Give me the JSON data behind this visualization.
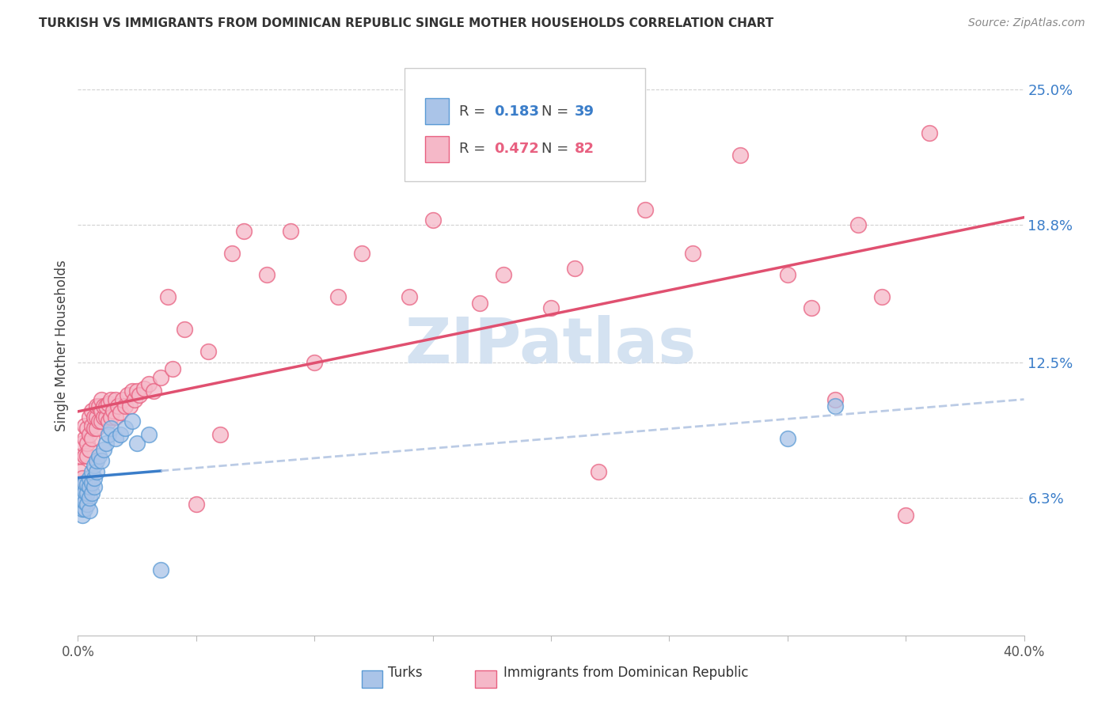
{
  "title": "TURKISH VS IMMIGRANTS FROM DOMINICAN REPUBLIC SINGLE MOTHER HOUSEHOLDS CORRELATION CHART",
  "source": "Source: ZipAtlas.com",
  "ylabel": "Single Mother Households",
  "ytick_labels": [
    "6.3%",
    "12.5%",
    "18.8%",
    "25.0%"
  ],
  "ytick_values": [
    0.063,
    0.125,
    0.188,
    0.25
  ],
  "xlim": [
    0.0,
    0.4
  ],
  "ylim": [
    0.0,
    0.265
  ],
  "turks_R": 0.183,
  "turks_N": 39,
  "dominican_R": 0.472,
  "dominican_N": 82,
  "turks_color": "#aac4e8",
  "turks_edge_color": "#5b9bd5",
  "dominican_color": "#f5b8c8",
  "dominican_edge_color": "#e86080",
  "turks_line_color": "#3a7dc9",
  "dominican_line_color": "#e05070",
  "dashed_line_color": "#aabfdf",
  "watermark_color": "#d0dff0",
  "background_color": "#ffffff",
  "grid_color": "#cccccc",
  "turks_scatter_x": [
    0.001,
    0.001,
    0.002,
    0.002,
    0.002,
    0.003,
    0.003,
    0.003,
    0.003,
    0.004,
    0.004,
    0.004,
    0.005,
    0.005,
    0.005,
    0.005,
    0.006,
    0.006,
    0.006,
    0.007,
    0.007,
    0.007,
    0.008,
    0.008,
    0.009,
    0.01,
    0.011,
    0.012,
    0.013,
    0.014,
    0.016,
    0.018,
    0.02,
    0.023,
    0.025,
    0.03,
    0.035,
    0.3,
    0.32
  ],
  "turks_scatter_y": [
    0.068,
    0.062,
    0.055,
    0.058,
    0.064,
    0.058,
    0.061,
    0.066,
    0.07,
    0.06,
    0.065,
    0.069,
    0.057,
    0.063,
    0.068,
    0.072,
    0.065,
    0.07,
    0.075,
    0.068,
    0.072,
    0.078,
    0.075,
    0.08,
    0.082,
    0.08,
    0.085,
    0.088,
    0.092,
    0.095,
    0.09,
    0.092,
    0.095,
    0.098,
    0.088,
    0.092,
    0.03,
    0.09,
    0.105
  ],
  "dominican_scatter_x": [
    0.001,
    0.001,
    0.002,
    0.002,
    0.002,
    0.003,
    0.003,
    0.003,
    0.004,
    0.004,
    0.004,
    0.005,
    0.005,
    0.005,
    0.006,
    0.006,
    0.006,
    0.007,
    0.007,
    0.008,
    0.008,
    0.008,
    0.009,
    0.009,
    0.01,
    0.01,
    0.01,
    0.011,
    0.011,
    0.012,
    0.012,
    0.013,
    0.013,
    0.014,
    0.014,
    0.015,
    0.016,
    0.016,
    0.017,
    0.018,
    0.019,
    0.02,
    0.021,
    0.022,
    0.023,
    0.024,
    0.025,
    0.026,
    0.028,
    0.03,
    0.032,
    0.035,
    0.038,
    0.04,
    0.045,
    0.05,
    0.055,
    0.06,
    0.065,
    0.07,
    0.08,
    0.09,
    0.1,
    0.11,
    0.12,
    0.14,
    0.15,
    0.17,
    0.18,
    0.2,
    0.21,
    0.22,
    0.24,
    0.26,
    0.28,
    0.3,
    0.31,
    0.32,
    0.33,
    0.34,
    0.35,
    0.36
  ],
  "dominican_scatter_y": [
    0.075,
    0.082,
    0.068,
    0.072,
    0.088,
    0.082,
    0.09,
    0.096,
    0.082,
    0.088,
    0.095,
    0.085,
    0.092,
    0.1,
    0.09,
    0.096,
    0.103,
    0.095,
    0.1,
    0.095,
    0.1,
    0.105,
    0.098,
    0.105,
    0.098,
    0.103,
    0.108,
    0.1,
    0.105,
    0.1,
    0.105,
    0.098,
    0.106,
    0.1,
    0.108,
    0.103,
    0.1,
    0.108,
    0.105,
    0.102,
    0.108,
    0.105,
    0.11,
    0.105,
    0.112,
    0.108,
    0.112,
    0.11,
    0.113,
    0.115,
    0.112,
    0.118,
    0.155,
    0.122,
    0.14,
    0.06,
    0.13,
    0.092,
    0.175,
    0.185,
    0.165,
    0.185,
    0.125,
    0.155,
    0.175,
    0.155,
    0.19,
    0.152,
    0.165,
    0.15,
    0.168,
    0.075,
    0.195,
    0.175,
    0.22,
    0.165,
    0.15,
    0.108,
    0.188,
    0.155,
    0.055,
    0.23
  ]
}
